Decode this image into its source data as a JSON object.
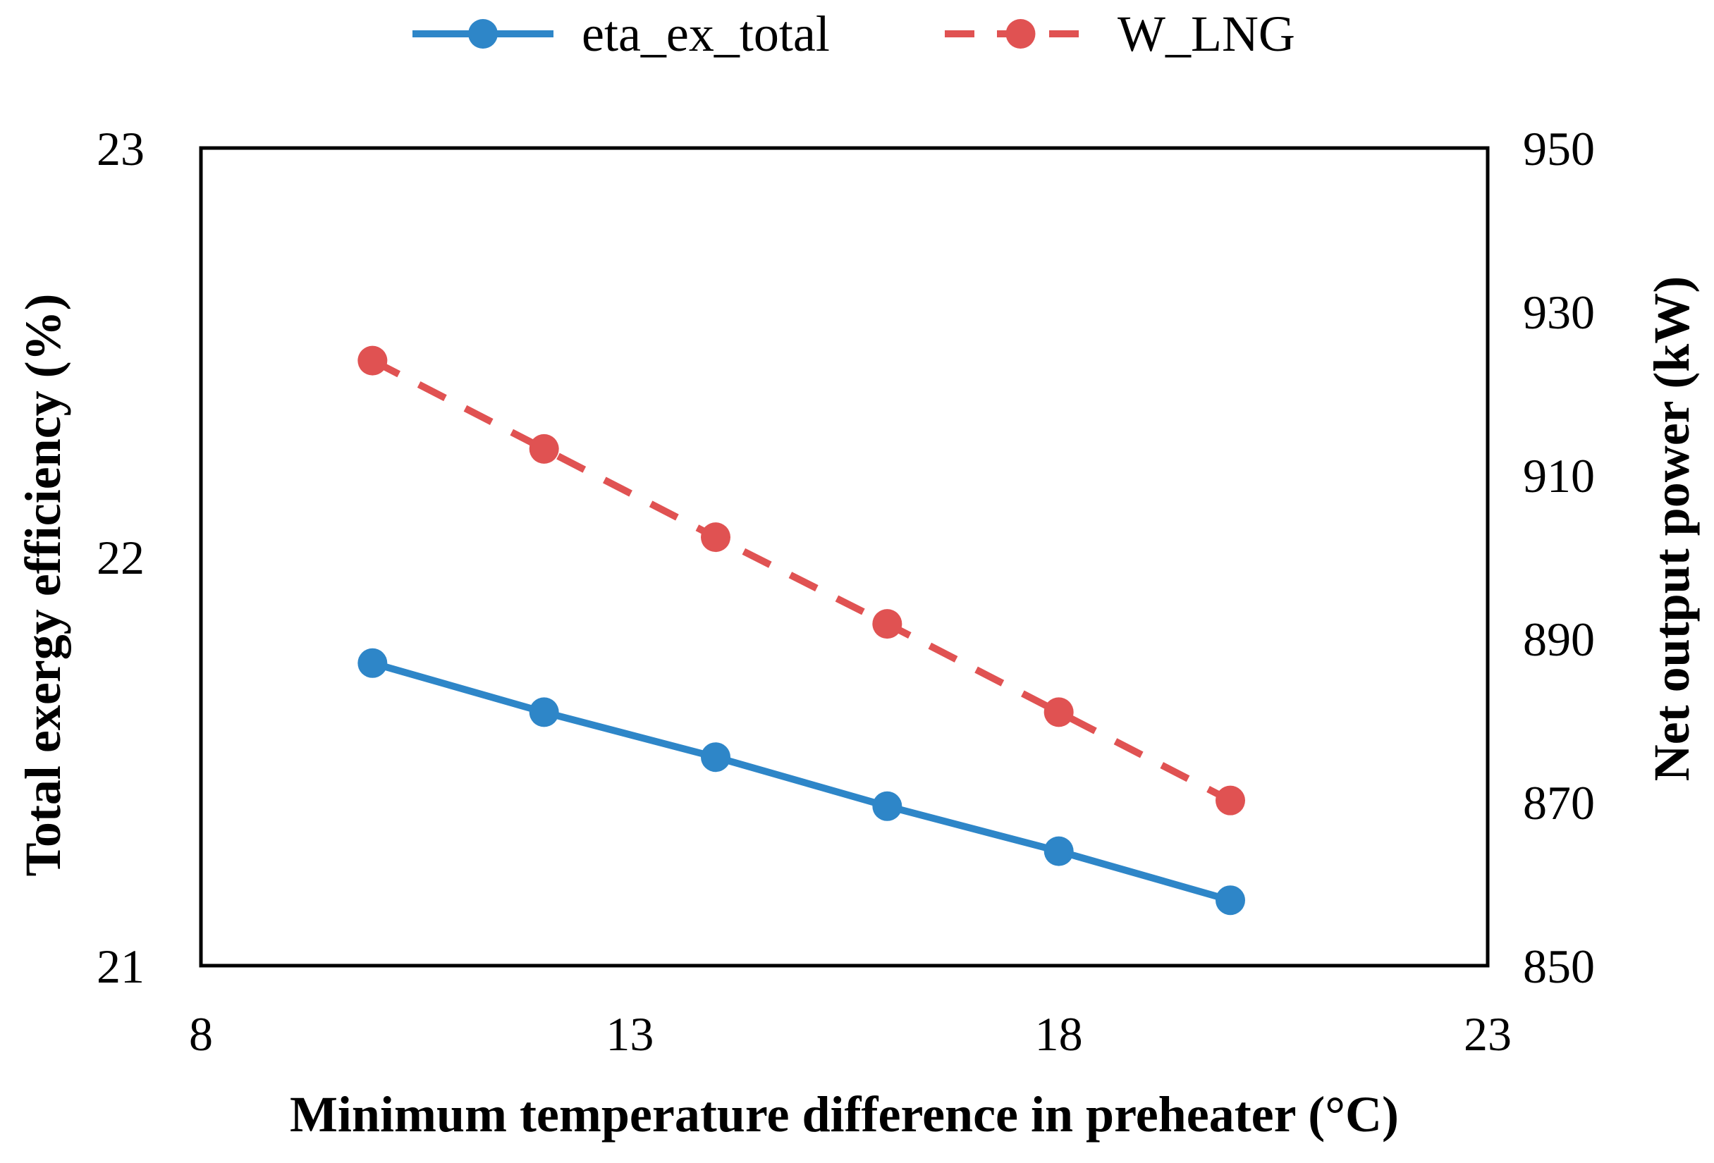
{
  "chart_data": {
    "type": "line",
    "title": "",
    "xlabel": "Minimum temperature difference in preheater (°C)",
    "ylabel_left": "Total exergy efficiency (%)",
    "ylabel_right": "Net output power (kW)",
    "xlim": [
      8,
      23
    ],
    "ylim_left": [
      21,
      23
    ],
    "ylim_right": [
      850,
      950
    ],
    "x_ticks": [
      "8",
      "13",
      "18",
      "23"
    ],
    "y_left_ticks": [
      "21",
      "22",
      "23"
    ],
    "y_right_ticks": [
      "850",
      "870",
      "890",
      "910",
      "930",
      "950"
    ],
    "grid": false,
    "legend_position": "top-center",
    "series": [
      {
        "name": "eta_ex_total",
        "axis": "left",
        "color": "#2e86c8",
        "style": "solid",
        "x": [
          10,
          12,
          14,
          16,
          18,
          20
        ],
        "values": [
          21.74,
          21.62,
          21.51,
          21.39,
          21.28,
          21.16
        ]
      },
      {
        "name": "W_LNG",
        "axis": "right",
        "color": "#e05252",
        "style": "dashed",
        "x": [
          10,
          12,
          14,
          16,
          18,
          20
        ],
        "values": [
          924.0,
          913.2,
          902.4,
          891.8,
          881.0,
          870.2
        ]
      }
    ]
  }
}
